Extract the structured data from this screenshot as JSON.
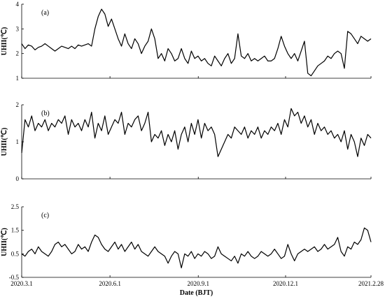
{
  "chart_data": [
    {
      "type": "line",
      "panel_label": "(a)",
      "ylabel": "UHII(℃)",
      "ylim": [
        1,
        4
      ],
      "yticks": [
        "1",
        "2",
        "3",
        "4"
      ],
      "x_start": "2020-03-01",
      "x_end": "2021-02-28",
      "series": [
        {
          "values": [
            2.4,
            2.2,
            2.35,
            2.3,
            2.15,
            2.25,
            2.3,
            2.4,
            2.3,
            2.2,
            2.1,
            2.2,
            2.3,
            2.25,
            2.2,
            2.3,
            2.2,
            2.35,
            2.3,
            2.35,
            2.4,
            2.3,
            3.0,
            3.5,
            3.8,
            3.6,
            3.1,
            3.4,
            3.0,
            2.6,
            2.3,
            2.8,
            2.4,
            2.2,
            2.6,
            2.4,
            2.0,
            2.3,
            2.5,
            3.0,
            2.6,
            1.8,
            2.0,
            1.7,
            2.2,
            2.0,
            1.7,
            1.8,
            2.2,
            1.8,
            1.6,
            2.1,
            1.8,
            1.9,
            1.7,
            1.8,
            1.6,
            1.5,
            1.9,
            1.7,
            1.5,
            1.8,
            2.0,
            1.6,
            1.8,
            2.8,
            1.9,
            1.8,
            2.0,
            1.7,
            1.8,
            1.7,
            1.8,
            1.9,
            1.7,
            1.7,
            1.8,
            2.2,
            2.7,
            2.3,
            2.0,
            1.8,
            2.0,
            1.7,
            2.1,
            2.5,
            1.2,
            1.1,
            1.3,
            1.5,
            1.6,
            1.7,
            1.9,
            1.8,
            2.0,
            2.1,
            2.0,
            1.4,
            2.9,
            2.8,
            2.6,
            2.4,
            2.7,
            2.6,
            2.5,
            2.6
          ]
        }
      ]
    },
    {
      "type": "line",
      "panel_label": "(b)",
      "ylabel": "UHII(℃)",
      "ylim": [
        0,
        2
      ],
      "yticks": [
        "0",
        "1",
        "2"
      ],
      "x_start": "2020-03-01",
      "x_end": "2021-02-28",
      "series": [
        {
          "values": [
            0.7,
            1.6,
            1.4,
            1.7,
            1.3,
            1.5,
            1.4,
            1.6,
            1.3,
            1.5,
            1.4,
            1.6,
            1.5,
            1.7,
            1.2,
            1.6,
            1.4,
            1.5,
            1.3,
            1.6,
            1.4,
            1.8,
            1.1,
            1.5,
            1.3,
            1.7,
            1.2,
            1.4,
            1.6,
            1.5,
            1.8,
            1.2,
            1.5,
            1.4,
            1.6,
            1.7,
            1.3,
            1.5,
            1.8,
            1.0,
            1.2,
            1.1,
            1.3,
            0.9,
            1.2,
            1.0,
            1.3,
            0.8,
            1.2,
            1.4,
            1.0,
            1.5,
            1.2,
            1.6,
            1.1,
            1.5,
            1.3,
            1.4,
            1.2,
            0.6,
            0.8,
            1.0,
            1.2,
            1.1,
            1.4,
            1.3,
            1.2,
            1.4,
            1.1,
            1.3,
            1.2,
            1.4,
            1.1,
            1.3,
            1.2,
            1.4,
            1.3,
            1.5,
            1.2,
            1.6,
            1.4,
            1.9,
            1.7,
            1.8,
            1.5,
            1.7,
            1.4,
            1.6,
            1.2,
            1.5,
            1.3,
            1.4,
            1.2,
            1.3,
            1.1,
            1.2,
            1.0,
            1.3,
            0.8,
            1.2,
            1.0,
            0.6,
            1.1,
            0.9,
            1.2,
            1.1
          ]
        }
      ]
    },
    {
      "type": "line",
      "panel_label": "(c)",
      "ylabel": "UHII(℃)",
      "ylim": [
        -0.5,
        2.5
      ],
      "yticks": [
        "-0.5",
        "0.5",
        "1.5",
        "2.5"
      ],
      "x_start": "2020-03-01",
      "x_end": "2021-02-28",
      "series": [
        {
          "values": [
            0.5,
            0.4,
            0.6,
            0.7,
            0.5,
            0.8,
            0.6,
            0.5,
            0.4,
            0.6,
            0.9,
            1.0,
            0.8,
            0.9,
            0.7,
            0.5,
            0.6,
            0.9,
            0.7,
            0.8,
            0.6,
            1.0,
            1.3,
            1.2,
            0.9,
            0.7,
            0.6,
            0.8,
            1.0,
            0.7,
            0.9,
            0.6,
            0.8,
            1.0,
            0.7,
            0.9,
            0.6,
            0.5,
            0.4,
            0.6,
            0.8,
            0.6,
            0.5,
            0.4,
            0.1,
            0.4,
            0.6,
            0.5,
            -0.1,
            0.5,
            0.4,
            0.6,
            0.3,
            0.5,
            0.4,
            0.6,
            0.5,
            0.3,
            0.4,
            0.8,
            0.5,
            0.4,
            0.3,
            0.2,
            0.4,
            0.1,
            0.5,
            0.4,
            0.6,
            0.4,
            0.3,
            0.4,
            0.6,
            0.5,
            0.4,
            0.5,
            0.7,
            0.5,
            0.3,
            0.4,
            0.9,
            0.5,
            0.2,
            0.5,
            0.6,
            0.7,
            0.6,
            0.7,
            0.8,
            0.6,
            0.7,
            0.9,
            0.7,
            0.8,
            0.9,
            1.2,
            0.6,
            0.4,
            0.8,
            0.7,
            1.0,
            0.9,
            1.1,
            1.6,
            1.5,
            1.0
          ]
        }
      ]
    }
  ],
  "xaxis": {
    "xlabel": "Date (BJT)",
    "ticks": [
      {
        "label": "2020.3.1",
        "date": "2020-03-01"
      },
      {
        "label": "2020.6.1",
        "date": "2020-06-01"
      },
      {
        "label": "2020.9.1",
        "date": "2020-09-01"
      },
      {
        "label": "2020.12.1",
        "date": "2020-12-01"
      },
      {
        "label": "2021.2.28",
        "date": "2021-02-28"
      }
    ]
  }
}
